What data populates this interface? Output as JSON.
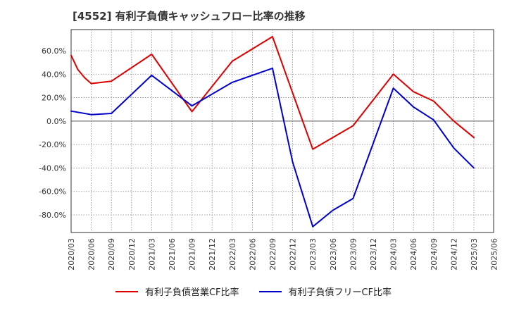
{
  "chart_data": {
    "type": "line",
    "title": "[4552]  有利子負債キャッシュフロー比率の推移",
    "x_ticks": [
      "2020/03",
      "2020/06",
      "2020/09",
      "2020/12",
      "2021/03",
      "2021/06",
      "2021/09",
      "2021/12",
      "2022/03",
      "2022/06",
      "2022/09",
      "2022/12",
      "2023/03",
      "2023/06",
      "2023/09",
      "2023/12",
      "2024/03",
      "2024/06",
      "2024/09",
      "2024/12",
      "2025/03",
      "2025/06"
    ],
    "y_ticks": [
      "60.0%",
      "40.0%",
      "20.0%",
      "0.0%",
      "-20.0%",
      "-40.0%",
      "-60.0%",
      "-80.0%"
    ],
    "ylim": [
      -95,
      78
    ],
    "grid": true,
    "legend_position": "bottom",
    "series": [
      {
        "name": "有利子負債営業CF比率",
        "color": "#dd0000",
        "points": [
          [
            "2020/03",
            56
          ],
          [
            "2020/04",
            44
          ],
          [
            "2020/05",
            37
          ],
          [
            "2020/06",
            32
          ],
          [
            "2020/09",
            34
          ],
          [
            "2021/03",
            57
          ],
          [
            "2021/09",
            8
          ],
          [
            "2022/03",
            51
          ],
          [
            "2022/09",
            72
          ],
          [
            "2023/01",
            8
          ],
          [
            "2023/03",
            -24
          ],
          [
            "2023/09",
            -4
          ],
          [
            "2024/03",
            40
          ],
          [
            "2024/06",
            25
          ],
          [
            "2024/09",
            17
          ],
          [
            "2024/12",
            0
          ],
          [
            "2025/03",
            -14
          ]
        ]
      },
      {
        "name": "有利子負債フリーCF比率",
        "color": "#0000cc",
        "points": [
          [
            "2020/03",
            8.5
          ],
          [
            "2020/06",
            5.5
          ],
          [
            "2020/09",
            6.5
          ],
          [
            "2021/03",
            39
          ],
          [
            "2021/09",
            13
          ],
          [
            "2022/03",
            33
          ],
          [
            "2022/09",
            45
          ],
          [
            "2022/12",
            -35
          ],
          [
            "2023/03",
            -90
          ],
          [
            "2023/06",
            -76
          ],
          [
            "2023/09",
            -66
          ],
          [
            "2024/03",
            28
          ],
          [
            "2024/06",
            12
          ],
          [
            "2024/09",
            1
          ],
          [
            "2024/12",
            -23
          ],
          [
            "2025/03",
            -40
          ]
        ]
      }
    ]
  }
}
